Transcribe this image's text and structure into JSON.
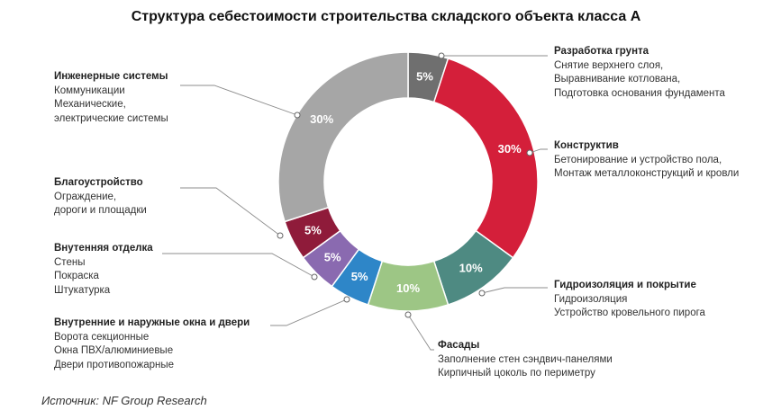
{
  "title": "Структура себестоимости строительства складского объекта класса А",
  "source": "Источник: NF Group Research",
  "chart_data": {
    "type": "pie",
    "variant": "donut",
    "title": "Структура себестоимости строительства складского объекта класса А",
    "unit": "%",
    "slices": [
      {
        "name": "Разработка грунта",
        "value": 5,
        "label": "5%",
        "color": "#6f6f6f",
        "details": [
          "Снятие верхнего слоя,",
          "Выравнивание котлована,",
          "Подготовка основания фундамента"
        ]
      },
      {
        "name": "Конструктив",
        "value": 30,
        "label": "30%",
        "color": "#d41f3a",
        "details": [
          "Бетонирование и устройство пола,",
          "Монтаж металлоконструкций и кровли"
        ]
      },
      {
        "name": "Гидроизоляция и покрытие",
        "value": 10,
        "label": "10%",
        "color": "#4e8a82",
        "details": [
          "Гидроизоляция",
          "Устройство кровельного пирога"
        ]
      },
      {
        "name": "Фасады",
        "value": 10,
        "label": "10%",
        "color": "#9dc685",
        "details": [
          "Заполнение стен сэндвич-панелями",
          "Кирпичный цоколь по периметру"
        ]
      },
      {
        "name": "Внутренние и наружные окна и двери",
        "value": 5,
        "label": "5%",
        "color": "#2e86c8",
        "details": [
          "Ворота секционные",
          "Окна ПВХ/алюминиевые",
          "Двери противопожарные"
        ]
      },
      {
        "name": "Внутенняя отделка",
        "value": 5,
        "label": "5%",
        "color": "#8a6ab0",
        "details": [
          "Стены",
          "Покраска",
          "Штукатурка"
        ]
      },
      {
        "name": "Благоустройство",
        "value": 5,
        "label": "5%",
        "color": "#8f1b3a",
        "details": [
          "Ограждение,",
          "дороги и площадки"
        ]
      },
      {
        "name": "Инженерные системы",
        "value": 30,
        "label": "30%",
        "color": "#a6a6a6",
        "details": [
          "Коммуникации",
          "Механические,",
          "электрические системы"
        ]
      }
    ]
  }
}
